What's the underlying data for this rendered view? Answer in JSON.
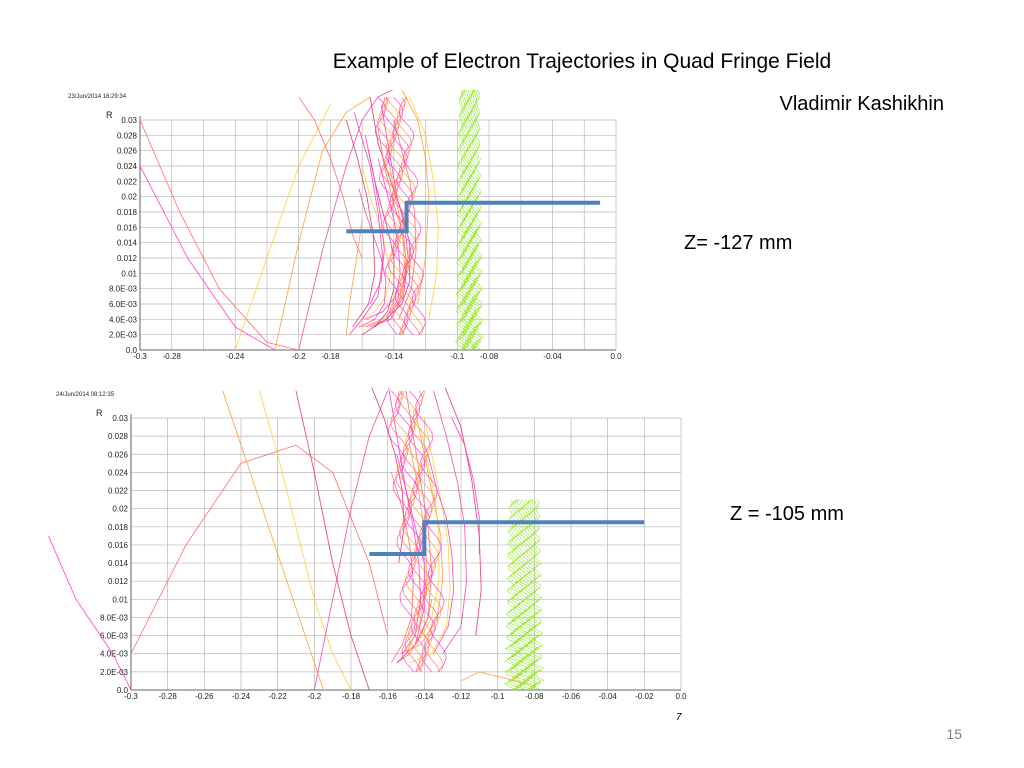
{
  "slide": {
    "title": "Example of Electron Trajectories in Quad Fringe Field",
    "author": "Vladimir Kashikhin",
    "page_number": "15",
    "footer_mark": "7"
  },
  "colors": {
    "grid": "#b8b8b8",
    "boundary": "#4f81bd",
    "traj_palette": [
      "#ff33cc",
      "#ff6666",
      "#ff9933",
      "#ffcc33",
      "#ee44aa",
      "#dd3366"
    ],
    "green": "#99e633"
  },
  "chart_data": [
    {
      "type": "line",
      "timestamp": "23/Jun/2014 16:29:34",
      "ylabel": "R",
      "z_label": "Z= -127 mm",
      "xlim": [
        -0.3,
        0.0
      ],
      "ylim": [
        0.0,
        0.03
      ],
      "x_ticks": [
        "-0.3",
        "-0.28",
        "-0.24",
        "-0.2",
        "-0.18",
        "-0.14",
        "-0.1",
        "-0.08",
        "-0.04",
        "0.0"
      ],
      "x_tick_values": [
        -0.3,
        -0.28,
        -0.24,
        -0.2,
        -0.18,
        -0.14,
        -0.1,
        -0.08,
        -0.04,
        0.0
      ],
      "y_ticks": [
        "0.0",
        "2.0E-03",
        "4.0E-03",
        "6.0E-03",
        "8.0E-03",
        "0.01",
        "0.012",
        "0.014",
        "0.016",
        "0.018",
        "0.02",
        "0.022",
        "0.024",
        "0.026",
        "0.028",
        "0.03"
      ],
      "y_tick_values": [
        0.0,
        0.002,
        0.004,
        0.006,
        0.008,
        0.01,
        0.012,
        0.014,
        0.016,
        0.018,
        0.02,
        0.022,
        0.024,
        0.026,
        0.028,
        0.03
      ],
      "grid": true,
      "boundary": {
        "x": [
          -0.17,
          -0.132,
          -0.132,
          -0.01
        ],
        "y": [
          0.0155,
          0.0155,
          0.0192,
          0.0192
        ]
      },
      "green_band": {
        "x_center": -0.092,
        "half_width": 0.006,
        "y_top": 0.034
      },
      "trajectories": [
        {
          "x": [
            -0.3,
            -0.27,
            -0.24,
            -0.215
          ],
          "y": [
            0.024,
            0.012,
            0.003,
            0.0
          ]
        },
        {
          "x": [
            -0.3,
            -0.275,
            -0.25,
            -0.22,
            -0.2
          ],
          "y": [
            0.03,
            0.018,
            0.008,
            0.001,
            0.0
          ]
        },
        {
          "x": [
            -0.215,
            -0.2,
            -0.185,
            -0.17,
            -0.155
          ],
          "y": [
            0.0,
            0.014,
            0.026,
            0.031,
            0.033
          ]
        },
        {
          "x": [
            -0.24,
            -0.22,
            -0.2,
            -0.18
          ],
          "y": [
            0.0,
            0.012,
            0.024,
            0.032
          ]
        },
        {
          "x": [
            -0.2,
            -0.185,
            -0.17,
            -0.16,
            -0.15,
            -0.14
          ],
          "y": [
            0.0,
            0.013,
            0.024,
            0.03,
            0.033,
            0.034
          ]
        },
        {
          "x": [
            -0.155,
            -0.15,
            -0.142,
            -0.135,
            -0.13,
            -0.13,
            -0.135,
            -0.145,
            -0.16
          ],
          "y": [
            0.033,
            0.027,
            0.022,
            0.018,
            0.014,
            0.009,
            0.006,
            0.004,
            0.002
          ]
        },
        {
          "x": [
            -0.148,
            -0.143,
            -0.138,
            -0.133,
            -0.131,
            -0.134,
            -0.142,
            -0.155
          ],
          "y": [
            0.032,
            0.026,
            0.02,
            0.016,
            0.012,
            0.007,
            0.004,
            0.003
          ]
        },
        {
          "x": [
            -0.15,
            -0.146,
            -0.14,
            -0.134,
            -0.132,
            -0.135,
            -0.144,
            -0.158
          ],
          "y": [
            0.029,
            0.024,
            0.019,
            0.015,
            0.011,
            0.007,
            0.004,
            0.003
          ]
        },
        {
          "x": [
            -0.145,
            -0.141,
            -0.137,
            -0.134,
            -0.133,
            -0.137,
            -0.147,
            -0.16
          ],
          "y": [
            0.027,
            0.022,
            0.018,
            0.014,
            0.01,
            0.006,
            0.004,
            0.003
          ]
        },
        {
          "x": [
            -0.16,
            -0.155,
            -0.15,
            -0.146,
            -0.142,
            -0.145,
            -0.152,
            -0.16
          ],
          "y": [
            0.024,
            0.02,
            0.017,
            0.014,
            0.01,
            0.007,
            0.005,
            0.004
          ]
        },
        {
          "x": [
            -0.162,
            -0.158,
            -0.153,
            -0.148,
            -0.145,
            -0.146,
            -0.152,
            -0.162
          ],
          "y": [
            0.021,
            0.018,
            0.015,
            0.012,
            0.009,
            0.006,
            0.004,
            0.003
          ]
        },
        {
          "x": [
            -0.156,
            -0.152,
            -0.147,
            -0.143,
            -0.14,
            -0.14,
            -0.144,
            -0.152
          ],
          "y": [
            0.026,
            0.022,
            0.018,
            0.015,
            0.012,
            0.008,
            0.005,
            0.003
          ]
        },
        {
          "x": [
            -0.15,
            -0.145,
            -0.14,
            -0.137,
            -0.136,
            -0.139,
            -0.147,
            -0.158
          ],
          "y": [
            0.025,
            0.021,
            0.017,
            0.013,
            0.01,
            0.007,
            0.005,
            0.004
          ]
        },
        {
          "x": [
            -0.14,
            -0.135,
            -0.13,
            -0.127,
            -0.126,
            -0.129,
            -0.137
          ],
          "y": [
            0.03,
            0.026,
            0.022,
            0.018,
            0.013,
            0.008,
            0.004
          ]
        },
        {
          "x": [
            -0.135,
            -0.125,
            -0.12,
            -0.118,
            -0.12,
            -0.125
          ],
          "y": [
            0.034,
            0.03,
            0.025,
            0.02,
            0.012,
            0.006
          ]
        },
        {
          "x": [
            -0.13,
            -0.12,
            -0.115,
            -0.112,
            -0.113,
            -0.118
          ],
          "y": [
            0.033,
            0.028,
            0.022,
            0.016,
            0.01,
            0.004
          ]
        },
        {
          "x": [
            -0.165,
            -0.155,
            -0.15,
            -0.147,
            -0.15,
            -0.16,
            -0.168
          ],
          "y": [
            0.031,
            0.024,
            0.018,
            0.012,
            0.007,
            0.004,
            0.002
          ]
        },
        {
          "x": [
            -0.17,
            -0.163,
            -0.157,
            -0.153,
            -0.152,
            -0.156,
            -0.166
          ],
          "y": [
            0.03,
            0.025,
            0.02,
            0.015,
            0.01,
            0.006,
            0.003
          ]
        },
        {
          "x": [
            -0.158,
            -0.152,
            -0.148,
            -0.146,
            -0.148,
            -0.155
          ],
          "y": [
            0.028,
            0.022,
            0.017,
            0.013,
            0.009,
            0.006
          ]
        },
        {
          "x": [
            -0.2,
            -0.19,
            -0.18,
            -0.172,
            -0.166,
            -0.16
          ],
          "y": [
            0.033,
            0.03,
            0.025,
            0.02,
            0.015,
            0.012
          ]
        },
        {
          "x": [
            -0.17,
            -0.168,
            -0.165,
            -0.162,
            -0.16
          ],
          "y": [
            0.002,
            0.006,
            0.01,
            0.014,
            0.017
          ]
        }
      ]
    },
    {
      "type": "line",
      "timestamp": "24/Jun/2014 08:12:35",
      "ylabel": "R",
      "z_label": "Z = -105 mm",
      "xlim": [
        -0.3,
        0.0
      ],
      "ylim": [
        0.0,
        0.03
      ],
      "x_ticks": [
        "-0.3",
        "-0.28",
        "-0.26",
        "-0.24",
        "-0.22",
        "-0.2",
        "-0.18",
        "-0.16",
        "-0.14",
        "-0.12",
        "-0.1",
        "-0.08",
        "-0.06",
        "-0.04",
        "-0.02",
        "0.0"
      ],
      "x_tick_values": [
        -0.3,
        -0.28,
        -0.26,
        -0.24,
        -0.22,
        -0.2,
        -0.18,
        -0.16,
        -0.14,
        -0.12,
        -0.1,
        -0.08,
        -0.06,
        -0.04,
        -0.02,
        0.0
      ],
      "y_ticks": [
        "0.0",
        "2.0E-03",
        "4.0E-03",
        "6.0E-03",
        "8.0E-03",
        "0.01",
        "0.012",
        "0.014",
        "0.016",
        "0.018",
        "0.02",
        "0.022",
        "0.024",
        "0.026",
        "0.028",
        "0.03"
      ],
      "y_tick_values": [
        0.0,
        0.002,
        0.004,
        0.006,
        0.008,
        0.01,
        0.012,
        0.014,
        0.016,
        0.018,
        0.02,
        0.022,
        0.024,
        0.026,
        0.028,
        0.03
      ],
      "grid": true,
      "boundary": {
        "x": [
          -0.17,
          -0.14,
          -0.14,
          -0.02
        ],
        "y": [
          0.015,
          0.015,
          0.0185,
          0.0185
        ]
      },
      "green_band": {
        "x_center": -0.085,
        "half_width": 0.008,
        "y_top": 0.021
      },
      "trajectories": [
        {
          "x": [
            -0.345,
            -0.33,
            -0.31,
            -0.3
          ],
          "y": [
            0.017,
            0.01,
            0.004,
            0.0
          ]
        },
        {
          "x": [
            -0.3,
            -0.27,
            -0.24,
            -0.21,
            -0.19,
            -0.17,
            -0.16
          ],
          "y": [
            0.004,
            0.016,
            0.025,
            0.027,
            0.024,
            0.014,
            0.006
          ]
        },
        {
          "x": [
            -0.25,
            -0.235,
            -0.22,
            -0.205,
            -0.195
          ],
          "y": [
            0.033,
            0.024,
            0.015,
            0.006,
            0.0
          ]
        },
        {
          "x": [
            -0.23,
            -0.22,
            -0.21,
            -0.2,
            -0.19,
            -0.18
          ],
          "y": [
            0.033,
            0.026,
            0.018,
            0.01,
            0.004,
            0.0
          ]
        },
        {
          "x": [
            -0.2,
            -0.19,
            -0.18,
            -0.17,
            -0.16
          ],
          "y": [
            0.0,
            0.01,
            0.02,
            0.028,
            0.033
          ]
        },
        {
          "x": [
            -0.21,
            -0.2,
            -0.19,
            -0.18,
            -0.17
          ],
          "y": [
            0.033,
            0.024,
            0.014,
            0.006,
            0.0
          ]
        },
        {
          "x": [
            -0.16,
            -0.155,
            -0.15,
            -0.145,
            -0.14,
            -0.14,
            -0.145,
            -0.155
          ],
          "y": [
            0.034,
            0.028,
            0.022,
            0.018,
            0.014,
            0.009,
            0.005,
            0.003
          ]
        },
        {
          "x": [
            -0.15,
            -0.146,
            -0.142,
            -0.138,
            -0.136,
            -0.138,
            -0.145,
            -0.155
          ],
          "y": [
            0.033,
            0.028,
            0.023,
            0.018,
            0.013,
            0.008,
            0.005,
            0.003
          ]
        },
        {
          "x": [
            -0.145,
            -0.14,
            -0.135,
            -0.131,
            -0.13,
            -0.133,
            -0.142,
            -0.153
          ],
          "y": [
            0.031,
            0.026,
            0.021,
            0.017,
            0.012,
            0.008,
            0.005,
            0.004
          ]
        },
        {
          "x": [
            -0.14,
            -0.135,
            -0.13,
            -0.127,
            -0.126,
            -0.128,
            -0.136,
            -0.148
          ],
          "y": [
            0.03,
            0.025,
            0.02,
            0.016,
            0.011,
            0.007,
            0.004,
            0.003
          ]
        },
        {
          "x": [
            -0.135,
            -0.128,
            -0.122,
            -0.118,
            -0.117,
            -0.12,
            -0.13
          ],
          "y": [
            0.033,
            0.028,
            0.023,
            0.018,
            0.012,
            0.007,
            0.004
          ]
        },
        {
          "x": [
            -0.13,
            -0.12,
            -0.114,
            -0.11,
            -0.109,
            -0.112
          ],
          "y": [
            0.034,
            0.029,
            0.023,
            0.017,
            0.011,
            0.006
          ]
        },
        {
          "x": [
            -0.155,
            -0.15,
            -0.146,
            -0.143,
            -0.142,
            -0.145,
            -0.152
          ],
          "y": [
            0.026,
            0.022,
            0.018,
            0.014,
            0.01,
            0.006,
            0.004
          ]
        },
        {
          "x": [
            -0.158,
            -0.152,
            -0.148,
            -0.146,
            -0.147,
            -0.152,
            -0.158
          ],
          "y": [
            0.024,
            0.02,
            0.016,
            0.012,
            0.008,
            0.005,
            0.003
          ]
        },
        {
          "x": [
            -0.148,
            -0.144,
            -0.141,
            -0.139,
            -0.139,
            -0.143,
            -0.15
          ],
          "y": [
            0.027,
            0.023,
            0.019,
            0.015,
            0.011,
            0.007,
            0.004
          ]
        },
        {
          "x": [
            -0.142,
            -0.138,
            -0.134,
            -0.132,
            -0.132,
            -0.136,
            -0.144
          ],
          "y": [
            0.029,
            0.025,
            0.021,
            0.017,
            0.012,
            0.008,
            0.005
          ]
        },
        {
          "x": [
            -0.138,
            -0.133,
            -0.128,
            -0.125,
            -0.124,
            -0.127,
            -0.135
          ],
          "y": [
            0.026,
            0.022,
            0.019,
            0.015,
            0.011,
            0.007,
            0.004
          ]
        },
        {
          "x": [
            -0.17,
            -0.162,
            -0.156,
            -0.152,
            -0.151,
            -0.154
          ],
          "y": [
            0.034,
            0.03,
            0.026,
            0.022,
            0.018,
            0.014
          ]
        },
        {
          "x": [
            -0.125,
            -0.118,
            -0.113,
            -0.11,
            -0.11
          ],
          "y": [
            0.03,
            0.027,
            0.023,
            0.019,
            0.015
          ]
        },
        {
          "x": [
            -0.155,
            -0.148,
            -0.142,
            -0.138,
            -0.136
          ],
          "y": [
            0.003,
            0.004,
            0.006,
            0.008,
            0.01
          ]
        },
        {
          "x": [
            -0.12,
            -0.11,
            -0.1,
            -0.09,
            -0.08
          ],
          "y": [
            0.001,
            0.002,
            0.0015,
            0.001,
            0.0005
          ]
        }
      ]
    }
  ]
}
